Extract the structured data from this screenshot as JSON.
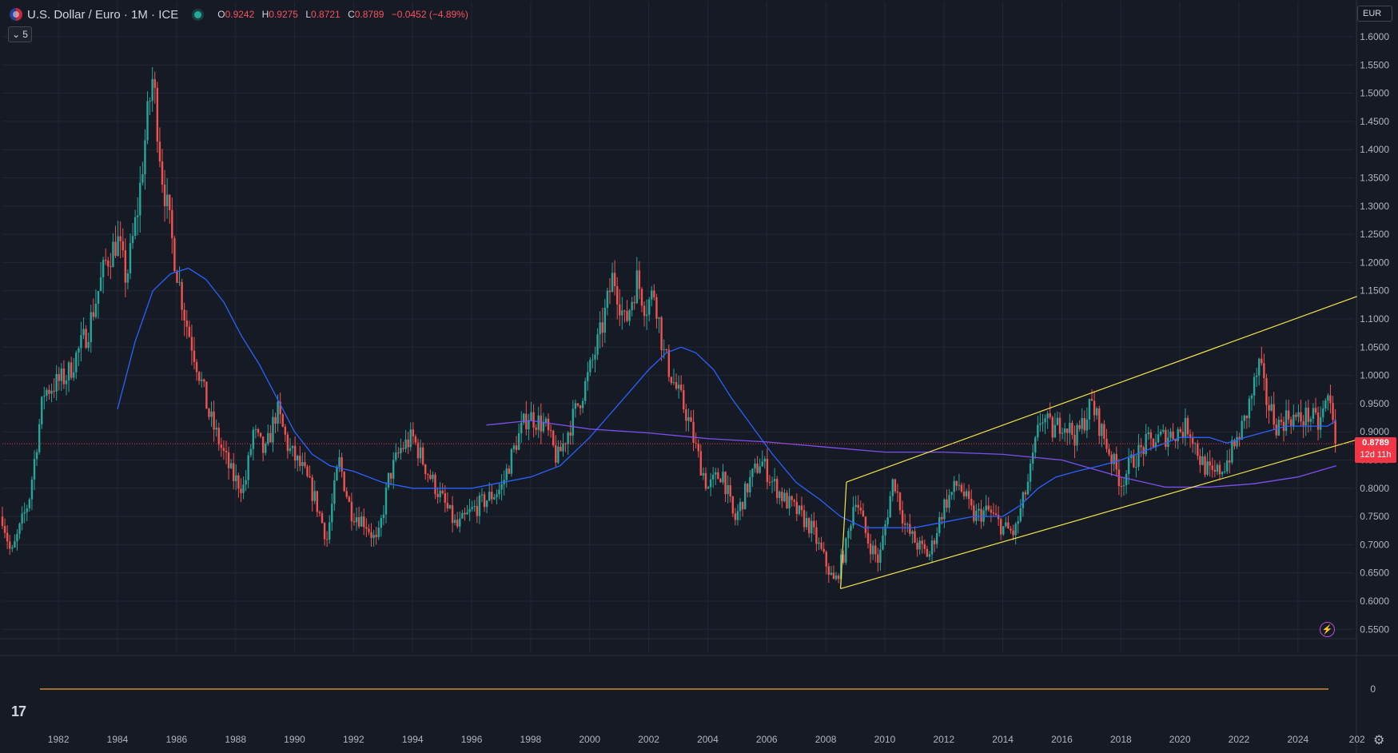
{
  "header": {
    "symbol_title": "U.S. Dollar / Euro · 1M · ICE",
    "ohlc": {
      "o_label": "O",
      "o_value": "0.9242",
      "h_label": "H",
      "h_value": "0.9275",
      "l_label": "L",
      "l_value": "0.8721",
      "c_label": "C",
      "c_value": "0.8789",
      "change": "−0.0452 (−4.89%)"
    },
    "indicator_count": "5"
  },
  "currency_button": "EUR",
  "last_price": {
    "value": "0.8789",
    "countdown": "12d 11h"
  },
  "colors": {
    "background": "#161a25",
    "up": "#26a69a",
    "down": "#ef5350",
    "ma_fast": "#2962ff",
    "ma_slow": "#7e4ff0",
    "channel": "#f5e64a",
    "zero_line": "#f0a430",
    "price_line": "#f23645"
  },
  "icons": [
    "us-flag-icon",
    "market-status-dot-icon",
    "chevron-down-icon",
    "tradingview-logo-icon",
    "lightning-icon",
    "settings-gear-icon"
  ],
  "chart_data": {
    "type": "candlestick",
    "interval": "1M",
    "y_axis": {
      "ticks": [
        "1.6000",
        "1.5500",
        "1.5000",
        "1.4500",
        "1.4000",
        "1.3500",
        "1.3000",
        "1.2500",
        "1.2000",
        "1.1500",
        "1.1000",
        "1.0500",
        "1.0000",
        "0.9500",
        "0.9000",
        "0.8500",
        "0.8000",
        "0.7500",
        "0.7000",
        "0.6500",
        "0.6000",
        "0.5500"
      ],
      "range": [
        0.53,
        1.61
      ],
      "lower_pane_tick": "0"
    },
    "x_axis": {
      "ticks": [
        "1982",
        "1984",
        "1986",
        "1988",
        "1990",
        "1992",
        "1994",
        "1996",
        "1998",
        "2000",
        "2002",
        "2004",
        "2006",
        "2008",
        "2010",
        "2012",
        "2014",
        "2016",
        "2018",
        "2020",
        "2022",
        "2024",
        "202"
      ],
      "range": [
        1980.1,
        2025.9
      ]
    },
    "price_path": [
      [
        1980.1,
        0.75
      ],
      [
        1980.4,
        0.68
      ],
      [
        1981.0,
        0.78
      ],
      [
        1981.5,
        0.97
      ],
      [
        1982.3,
        1.0
      ],
      [
        1983.0,
        1.08
      ],
      [
        1983.6,
        1.2
      ],
      [
        1984.0,
        1.24
      ],
      [
        1984.3,
        1.17
      ],
      [
        1984.7,
        1.3
      ],
      [
        1985.0,
        1.45
      ],
      [
        1985.2,
        1.53
      ],
      [
        1985.5,
        1.36
      ],
      [
        1985.9,
        1.22
      ],
      [
        1986.3,
        1.1
      ],
      [
        1986.7,
        1.02
      ],
      [
        1987.1,
        0.93
      ],
      [
        1987.6,
        0.86
      ],
      [
        1987.9,
        0.82
      ],
      [
        1988.3,
        0.8
      ],
      [
        1988.6,
        0.9
      ],
      [
        1989.0,
        0.86
      ],
      [
        1989.4,
        0.94
      ],
      [
        1989.8,
        0.87
      ],
      [
        1990.3,
        0.83
      ],
      [
        1990.7,
        0.78
      ],
      [
        1991.1,
        0.71
      ],
      [
        1991.5,
        0.85
      ],
      [
        1991.9,
        0.76
      ],
      [
        1992.4,
        0.74
      ],
      [
        1992.8,
        0.7
      ],
      [
        1993.2,
        0.82
      ],
      [
        1993.6,
        0.87
      ],
      [
        1994.0,
        0.89
      ],
      [
        1994.5,
        0.83
      ],
      [
        1995.0,
        0.78
      ],
      [
        1995.5,
        0.73
      ],
      [
        1996.0,
        0.76
      ],
      [
        1996.5,
        0.78
      ],
      [
        1997.0,
        0.8
      ],
      [
        1997.5,
        0.88
      ],
      [
        1997.9,
        0.93
      ],
      [
        1998.5,
        0.91
      ],
      [
        1998.9,
        0.85
      ],
      [
        1999.4,
        0.92
      ],
      [
        1999.9,
        0.99
      ],
      [
        2000.4,
        1.08
      ],
      [
        2000.8,
        1.18
      ],
      [
        2001.2,
        1.09
      ],
      [
        2001.6,
        1.17
      ],
      [
        2001.9,
        1.12
      ],
      [
        2002.2,
        1.15
      ],
      [
        2002.5,
        1.04
      ],
      [
        2002.9,
        0.98
      ],
      [
        2003.3,
        0.93
      ],
      [
        2003.6,
        0.87
      ],
      [
        2004.0,
        0.8
      ],
      [
        2004.5,
        0.83
      ],
      [
        2004.9,
        0.74
      ],
      [
        2005.4,
        0.81
      ],
      [
        2005.8,
        0.85
      ],
      [
        2006.2,
        0.81
      ],
      [
        2006.6,
        0.78
      ],
      [
        2007.0,
        0.76
      ],
      [
        2007.5,
        0.73
      ],
      [
        2007.9,
        0.68
      ],
      [
        2008.3,
        0.63
      ],
      [
        2008.7,
        0.7
      ],
      [
        2009.0,
        0.79
      ],
      [
        2009.4,
        0.71
      ],
      [
        2009.8,
        0.67
      ],
      [
        2010.3,
        0.82
      ],
      [
        2010.7,
        0.73
      ],
      [
        2011.1,
        0.7
      ],
      [
        2011.5,
        0.68
      ],
      [
        2012.0,
        0.77
      ],
      [
        2012.5,
        0.81
      ],
      [
        2013.0,
        0.75
      ],
      [
        2013.5,
        0.76
      ],
      [
        2014.0,
        0.73
      ],
      [
        2014.4,
        0.72
      ],
      [
        2014.9,
        0.82
      ],
      [
        2015.3,
        0.93
      ],
      [
        2015.7,
        0.9
      ],
      [
        2016.0,
        0.92
      ],
      [
        2016.5,
        0.89
      ],
      [
        2017.0,
        0.95
      ],
      [
        2017.5,
        0.88
      ],
      [
        2018.0,
        0.81
      ],
      [
        2018.4,
        0.85
      ],
      [
        2018.9,
        0.88
      ],
      [
        2019.4,
        0.89
      ],
      [
        2019.9,
        0.9
      ],
      [
        2020.3,
        0.91
      ],
      [
        2020.7,
        0.85
      ],
      [
        2021.1,
        0.82
      ],
      [
        2021.5,
        0.84
      ],
      [
        2021.9,
        0.88
      ],
      [
        2022.2,
        0.92
      ],
      [
        2022.7,
        1.02
      ],
      [
        2022.9,
        0.96
      ],
      [
        2023.3,
        0.91
      ],
      [
        2023.7,
        0.93
      ],
      [
        2024.0,
        0.92
      ],
      [
        2024.4,
        0.93
      ],
      [
        2024.7,
        0.91
      ],
      [
        2025.0,
        0.96
      ],
      [
        2025.2,
        0.93
      ],
      [
        2025.3,
        0.88
      ]
    ],
    "last_close": 0.8789,
    "moving_averages": [
      {
        "color_key": "ma_fast",
        "points": [
          [
            1984.0,
            0.94
          ],
          [
            1984.6,
            1.06
          ],
          [
            1985.2,
            1.15
          ],
          [
            1985.8,
            1.18
          ],
          [
            1986.4,
            1.19
          ],
          [
            1987.0,
            1.17
          ],
          [
            1987.6,
            1.13
          ],
          [
            1988.2,
            1.07
          ],
          [
            1988.8,
            1.02
          ],
          [
            1989.4,
            0.96
          ],
          [
            1990.0,
            0.9
          ],
          [
            1990.6,
            0.86
          ],
          [
            1991.2,
            0.84
          ],
          [
            1992.0,
            0.83
          ],
          [
            1993.0,
            0.81
          ],
          [
            1994.0,
            0.8
          ],
          [
            1995.0,
            0.8
          ],
          [
            1996.0,
            0.8
          ],
          [
            1997.0,
            0.81
          ],
          [
            1998.0,
            0.82
          ],
          [
            1999.0,
            0.84
          ],
          [
            2000.0,
            0.89
          ],
          [
            2001.0,
            0.95
          ],
          [
            2002.0,
            1.01
          ],
          [
            2002.6,
            1.04
          ],
          [
            2003.1,
            1.05
          ],
          [
            2003.6,
            1.04
          ],
          [
            2004.2,
            1.01
          ],
          [
            2004.8,
            0.96
          ],
          [
            2005.5,
            0.91
          ],
          [
            2006.2,
            0.86
          ],
          [
            2007.0,
            0.81
          ],
          [
            2007.8,
            0.78
          ],
          [
            2008.5,
            0.75
          ],
          [
            2009.3,
            0.73
          ],
          [
            2010.0,
            0.73
          ],
          [
            2011.0,
            0.73
          ],
          [
            2012.0,
            0.74
          ],
          [
            2013.0,
            0.75
          ],
          [
            2014.0,
            0.75
          ],
          [
            2014.6,
            0.77
          ],
          [
            2015.2,
            0.8
          ],
          [
            2015.8,
            0.82
          ],
          [
            2016.5,
            0.83
          ],
          [
            2017.3,
            0.84
          ],
          [
            2018.0,
            0.85
          ],
          [
            2019.0,
            0.87
          ],
          [
            2020.0,
            0.89
          ],
          [
            2021.0,
            0.89
          ],
          [
            2021.6,
            0.88
          ],
          [
            2022.2,
            0.89
          ],
          [
            2022.9,
            0.9
          ],
          [
            2023.6,
            0.91
          ],
          [
            2024.3,
            0.91
          ],
          [
            2025.0,
            0.91
          ],
          [
            2025.3,
            0.92
          ]
        ]
      },
      {
        "color_key": "ma_slow",
        "points": [
          [
            1996.5,
            0.912
          ],
          [
            1998.0,
            0.92
          ],
          [
            2000.0,
            0.905
          ],
          [
            2002.0,
            0.898
          ],
          [
            2004.0,
            0.888
          ],
          [
            2006.0,
            0.882
          ],
          [
            2008.0,
            0.873
          ],
          [
            2010.0,
            0.864
          ],
          [
            2012.0,
            0.864
          ],
          [
            2014.0,
            0.86
          ],
          [
            2016.0,
            0.85
          ],
          [
            2018.0,
            0.82
          ],
          [
            2019.5,
            0.802
          ],
          [
            2021.0,
            0.802
          ],
          [
            2022.5,
            0.808
          ],
          [
            2024.0,
            0.82
          ],
          [
            2025.3,
            0.84
          ]
        ]
      }
    ],
    "channel": {
      "upper": [
        [
          2008.7,
          0.811
        ],
        [
          2026.0,
          1.14
        ]
      ],
      "lower": [
        [
          2008.5,
          0.622
        ],
        [
          2026.0,
          0.886
        ]
      ]
    }
  }
}
